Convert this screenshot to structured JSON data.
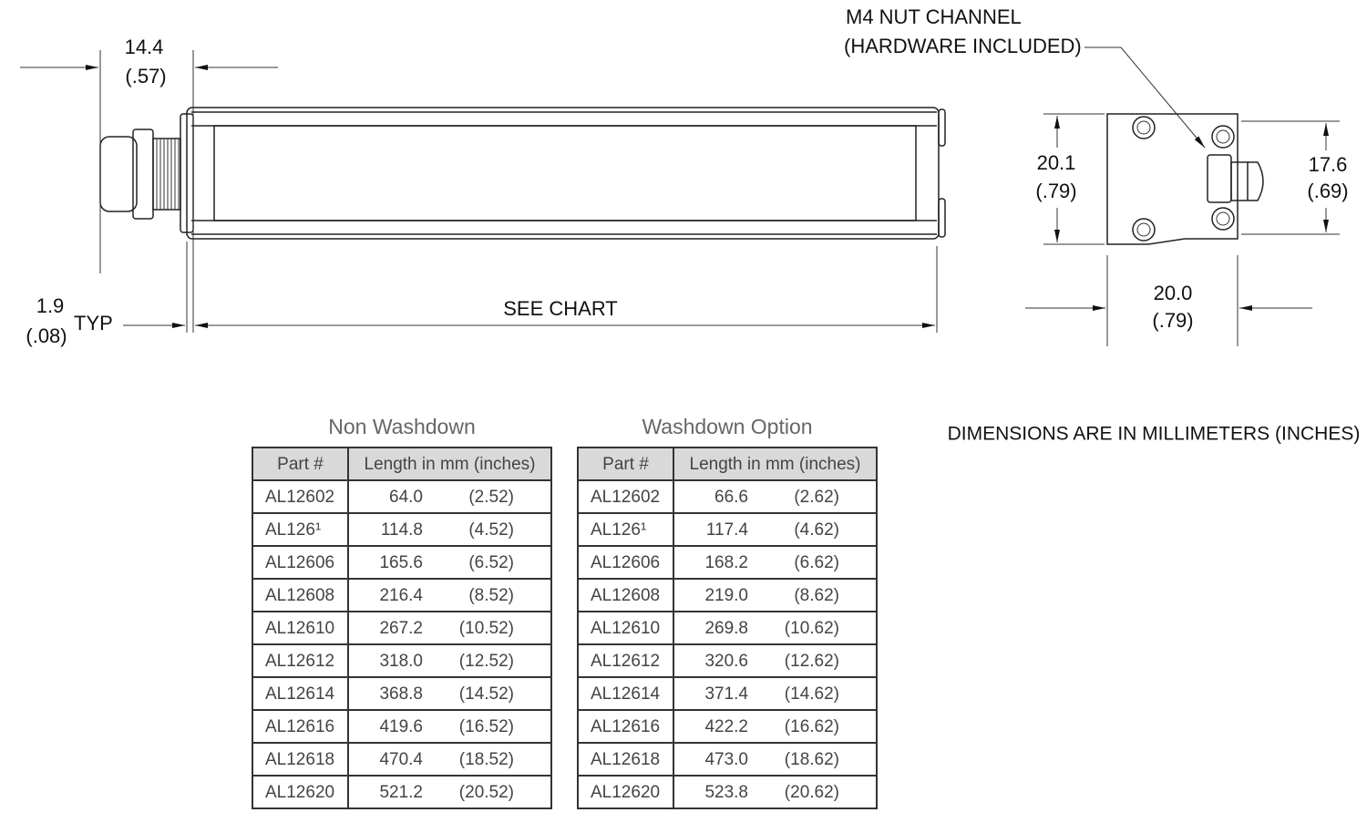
{
  "dimensions": {
    "gland_width_mm": "14.4",
    "gland_width_in": "(.57)",
    "lip_mm": "1.9",
    "lip_in": "(.08)",
    "lip_typ": "TYP",
    "length": "SEE CHART",
    "callout_line1": "M4 NUT CHANNEL",
    "callout_line2": "(HARDWARE INCLUDED)",
    "height_mm": "20.1",
    "height_in": "(.79)",
    "channel_mm": "17.6",
    "channel_in": "(.69)",
    "depth_mm": "20.0",
    "depth_in": "(.79)"
  },
  "note": "DIMENSIONS ARE IN MILLIMETERS (INCHES)",
  "tables": [
    {
      "title": "Non Washdown",
      "headers": [
        "Part #",
        "Length in mm (inches)"
      ],
      "rows": [
        [
          "AL12602",
          "64.0",
          "(2.52)"
        ],
        [
          "AL126¹",
          "114.8",
          "(4.52)"
        ],
        [
          "AL12606",
          "165.6",
          "(6.52)"
        ],
        [
          "AL12608",
          "216.4",
          "(8.52)"
        ],
        [
          "AL12610",
          "267.2",
          "(10.52)"
        ],
        [
          "AL12612",
          "318.0",
          "(12.52)"
        ],
        [
          "AL12614",
          "368.8",
          "(14.52)"
        ],
        [
          "AL12616",
          "419.6",
          "(16.52)"
        ],
        [
          "AL12618",
          "470.4",
          "(18.52)"
        ],
        [
          "AL12620",
          "521.2",
          "(20.52)"
        ]
      ]
    },
    {
      "title": "Washdown Option",
      "headers": [
        "Part #",
        "Length in mm (inches)"
      ],
      "rows": [
        [
          "AL12602",
          "66.6",
          "(2.62)"
        ],
        [
          "AL126¹",
          "117.4",
          "(4.62)"
        ],
        [
          "AL12606",
          "168.2",
          "(6.62)"
        ],
        [
          "AL12608",
          "219.0",
          "(8.62)"
        ],
        [
          "AL12610",
          "269.8",
          "(10.62)"
        ],
        [
          "AL12612",
          "320.6",
          "(12.62)"
        ],
        [
          "AL12614",
          "371.4",
          "(14.62)"
        ],
        [
          "AL12616",
          "422.2",
          "(16.62)"
        ],
        [
          "AL12618",
          "473.0",
          "(18.62)"
        ],
        [
          "AL12620",
          "523.8",
          "(20.62)"
        ]
      ]
    }
  ]
}
